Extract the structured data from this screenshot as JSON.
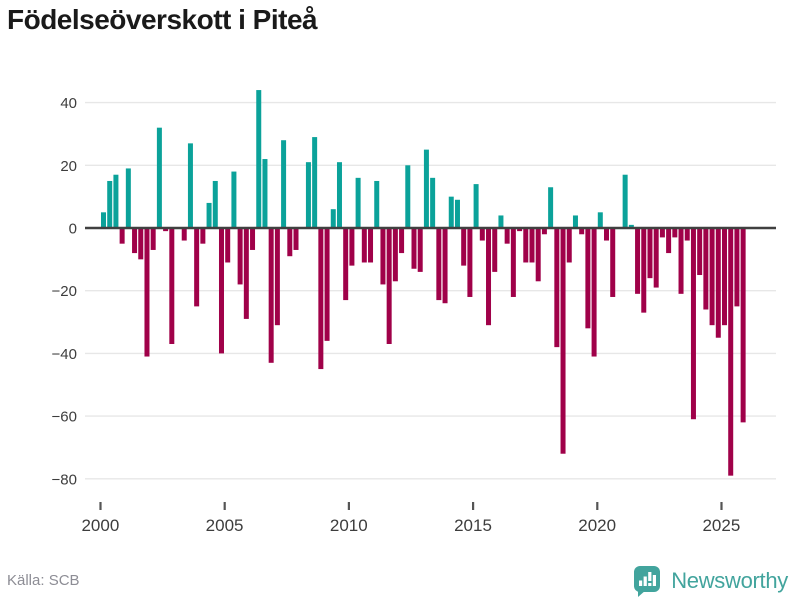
{
  "title": "Födelseöverskott i Piteå",
  "footer": {
    "source_label": "Källa: SCB",
    "brand_name": "Newsworthy",
    "brand_icon": "newsworthy-speech-bubble-barchart-icon"
  },
  "colors": {
    "positive_bar": "#0ba29a",
    "negative_bar": "#a00149",
    "zero_line": "#404040",
    "gridline": "#e7e7e7",
    "axis_text": "#3d3d3d",
    "tick_mark": "#555555",
    "title_text": "#1a1a1a",
    "source_text": "#8d8d95",
    "brand_teal": "#42a49d",
    "background": "#ffffff"
  },
  "chart_data": {
    "type": "bar",
    "title": "Födelseöverskott i Piteå",
    "frequency": "quarterly",
    "start_quarter": "2000 Q1",
    "end_quarter": "2025 Q4",
    "x_tick_labels": [
      "2000",
      "2005",
      "2010",
      "2015",
      "2020",
      "2025"
    ],
    "y_tick_labels": [
      "40",
      "20",
      "0",
      "−20",
      "−40",
      "−60",
      "−80"
    ],
    "y_ticks": [
      40,
      20,
      0,
      -20,
      -40,
      -60,
      -80
    ],
    "ylim": [
      -85,
      47
    ],
    "grid": "horizontal",
    "legend": "none",
    "values": [
      5,
      15,
      17,
      -5,
      19,
      -8,
      -10,
      -41,
      -7,
      32,
      -1,
      -37,
      0,
      -4,
      27,
      -25,
      -5,
      8,
      15,
      -40,
      -11,
      18,
      -18,
      -29,
      -7,
      44,
      22,
      -43,
      -31,
      28,
      -9,
      -7,
      0,
      21,
      29,
      -45,
      -36,
      6,
      21,
      -23,
      -12,
      16,
      -11,
      -11,
      15,
      -18,
      -37,
      -17,
      -8,
      20,
      -13,
      -14,
      25,
      16,
      -23,
      -24,
      10,
      9,
      -12,
      -22,
      14,
      -4,
      -31,
      -14,
      4,
      -5,
      -22,
      -1,
      -11,
      -11,
      -17,
      -2,
      13,
      -38,
      -72,
      -11,
      4,
      -2,
      -32,
      -41,
      5,
      -4,
      -22,
      0,
      17,
      1,
      -21,
      -27,
      -16,
      -19,
      -3,
      -8,
      -3,
      -21,
      -4,
      -61,
      -15,
      -26,
      -31,
      -35,
      -31,
      -79,
      -25,
      -62
    ]
  }
}
